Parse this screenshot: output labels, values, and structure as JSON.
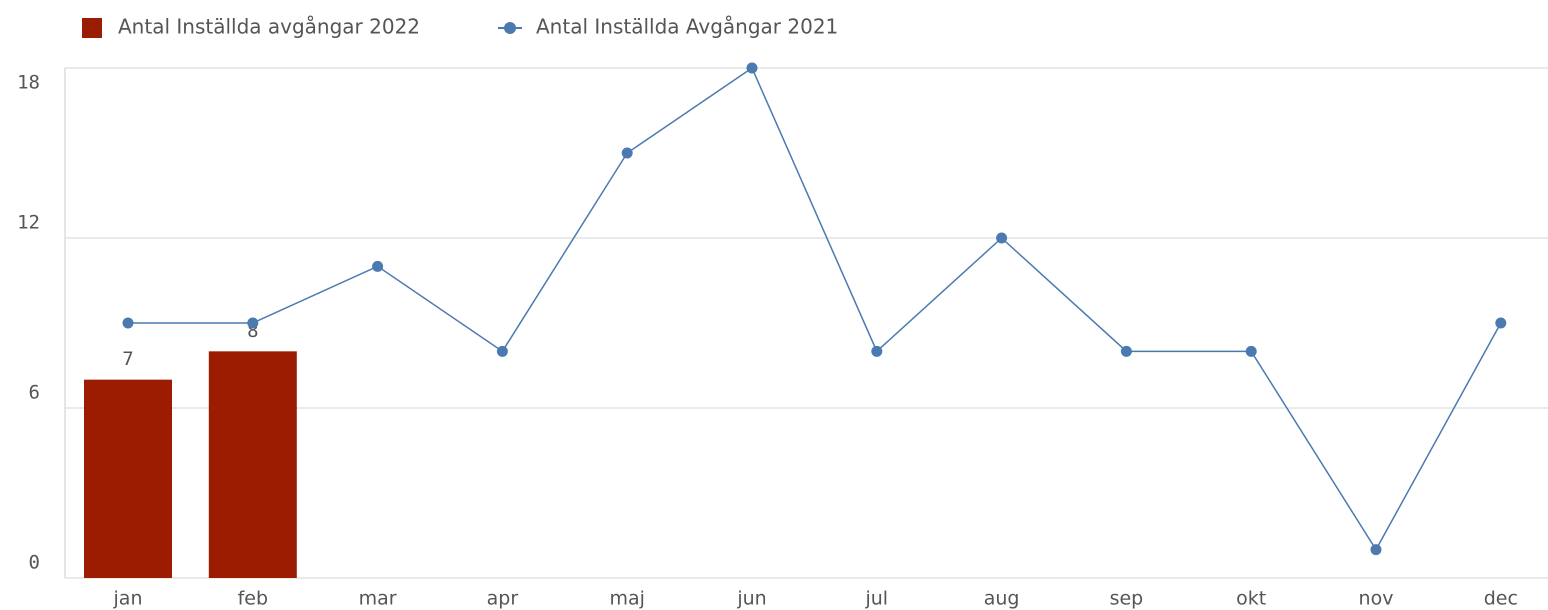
{
  "chart_data": {
    "type": "combo",
    "categories": [
      "jan",
      "feb",
      "mar",
      "apr",
      "maj",
      "jun",
      "jul",
      "aug",
      "sep",
      "okt",
      "nov",
      "dec"
    ],
    "series": [
      {
        "name": "Antal Inställda avgångar 2022",
        "type": "bar",
        "color": "#9b1c00",
        "values": [
          7,
          8,
          null,
          null,
          null,
          null,
          null,
          null,
          null,
          null,
          null,
          null
        ]
      },
      {
        "name": "Antal Inställda Avgångar 2021",
        "type": "line",
        "color": "#4a7ab0",
        "values": [
          9,
          9,
          11,
          8,
          15,
          18,
          8,
          12,
          8,
          8,
          1,
          9
        ]
      }
    ],
    "ylim": [
      0,
      18
    ],
    "yticks": [
      0,
      6,
      12,
      18
    ],
    "grid": true,
    "legend": "top"
  }
}
